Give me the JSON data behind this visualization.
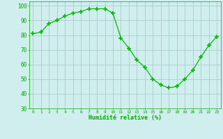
{
  "x": [
    0,
    1,
    2,
    3,
    4,
    5,
    6,
    7,
    8,
    9,
    10,
    11,
    12,
    13,
    14,
    15,
    16,
    17,
    18,
    19,
    20,
    21,
    22,
    23
  ],
  "y": [
    81,
    82,
    88,
    90,
    93,
    95,
    96,
    98,
    98,
    98,
    95,
    78,
    71,
    63,
    58,
    50,
    46,
    44,
    45,
    50,
    56,
    65,
    73,
    79
  ],
  "line_color": "#00bb00",
  "marker": "+",
  "marker_size": 4,
  "marker_lw": 1.2,
  "bg_color": "#d0eeee",
  "grid_color": "#aacccc",
  "xlabel": "Humidité relative (%)",
  "xlabel_color": "#00aa00",
  "tick_color": "#00aa00",
  "ylim": [
    30,
    103
  ],
  "xlim": [
    -0.5,
    23.5
  ],
  "yticks": [
    30,
    40,
    50,
    60,
    70,
    80,
    90,
    100
  ],
  "xticks": [
    0,
    1,
    2,
    3,
    4,
    5,
    6,
    7,
    8,
    9,
    10,
    11,
    12,
    13,
    14,
    15,
    16,
    17,
    18,
    19,
    20,
    21,
    22,
    23
  ]
}
